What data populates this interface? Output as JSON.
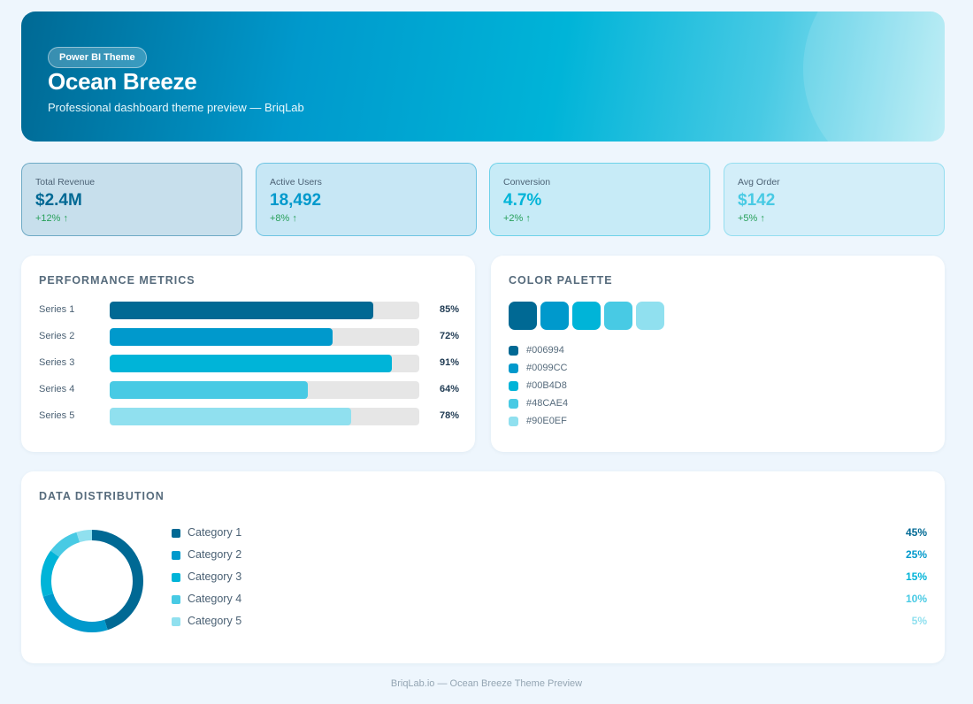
{
  "header": {
    "badge": "Power BI Theme",
    "title": "Ocean Breeze",
    "subtitle": "Professional dashboard theme preview — BriqLab"
  },
  "kpis": [
    {
      "label": "Total Revenue",
      "value": "$2.4M",
      "change": "+12% ↑",
      "color": "#006994"
    },
    {
      "label": "Active Users",
      "value": "18,492",
      "change": "+8% ↑",
      "color": "#0099CC"
    },
    {
      "label": "Conversion",
      "value": "4.7%",
      "change": "+2% ↑",
      "color": "#00B4D8"
    },
    {
      "label": "Avg Order",
      "value": "$142",
      "change": "+5% ↑",
      "color": "#48CAE4"
    }
  ],
  "performance": {
    "title": "PERFORMANCE METRICS",
    "series": [
      {
        "label": "Series 1",
        "value": 85,
        "display": "85%",
        "color": "#006994"
      },
      {
        "label": "Series 2",
        "value": 72,
        "display": "72%",
        "color": "#0099CC"
      },
      {
        "label": "Series 3",
        "value": 91,
        "display": "91%",
        "color": "#00B4D8"
      },
      {
        "label": "Series 4",
        "value": 64,
        "display": "64%",
        "color": "#48CAE4"
      },
      {
        "label": "Series 5",
        "value": 78,
        "display": "78%",
        "color": "#90E0EF"
      }
    ]
  },
  "palette": {
    "title": "COLOR PALETTE",
    "colors": [
      "#006994",
      "#0099CC",
      "#00B4D8",
      "#48CAE4",
      "#90E0EF"
    ]
  },
  "distribution": {
    "title": "DATA DISTRIBUTION",
    "categories": [
      {
        "label": "Category 1",
        "value": 45,
        "display": "45%",
        "color": "#006994"
      },
      {
        "label": "Category 2",
        "value": 25,
        "display": "25%",
        "color": "#0099CC"
      },
      {
        "label": "Category 3",
        "value": 15,
        "display": "15%",
        "color": "#00B4D8"
      },
      {
        "label": "Category 4",
        "value": 10,
        "display": "10%",
        "color": "#48CAE4"
      },
      {
        "label": "Category 5",
        "value": 5,
        "display": "5%",
        "color": "#90E0EF"
      }
    ]
  },
  "footer": "BriqLab.io — Ocean Breeze Theme Preview",
  "chart_data": [
    {
      "type": "bar",
      "title": "PERFORMANCE METRICS",
      "categories": [
        "Series 1",
        "Series 2",
        "Series 3",
        "Series 4",
        "Series 5"
      ],
      "values": [
        85,
        72,
        91,
        64,
        78
      ],
      "ylim": [
        0,
        100
      ]
    },
    {
      "type": "pie",
      "title": "DATA DISTRIBUTION",
      "categories": [
        "Category 1",
        "Category 2",
        "Category 3",
        "Category 4",
        "Category 5"
      ],
      "values": [
        45,
        25,
        15,
        10,
        5
      ]
    }
  ]
}
